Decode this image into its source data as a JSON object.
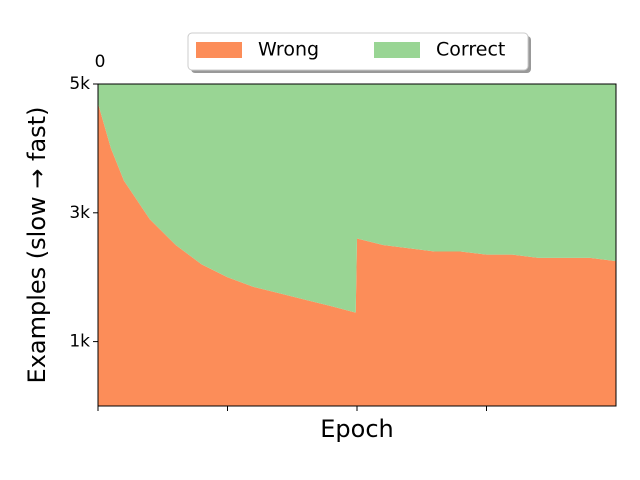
{
  "chart_data": {
    "type": "stacked_area",
    "corner_label": "0",
    "xlabel": "Epoch",
    "ylabel": "Examples (slow → fast)",
    "x": [
      0,
      1,
      2,
      4,
      6,
      8,
      10,
      12,
      14,
      16,
      18,
      19.9,
      20,
      22,
      24,
      26,
      28,
      30,
      32,
      34,
      36,
      38,
      40
    ],
    "series": [
      {
        "name": "Wrong",
        "color": "#fc8d59",
        "values": [
          4700,
          4000,
          3500,
          2900,
          2500,
          2200,
          2000,
          1850,
          1750,
          1650,
          1550,
          1450,
          2600,
          2500,
          2450,
          2400,
          2400,
          2350,
          2350,
          2300,
          2300,
          2300,
          2250
        ]
      },
      {
        "name": "Correct",
        "color": "#99d594",
        "values": [
          300,
          1000,
          1500,
          2100,
          2500,
          2800,
          3000,
          3150,
          3250,
          3350,
          3450,
          3550,
          2400,
          2500,
          2550,
          2600,
          2600,
          2650,
          2650,
          2700,
          2700,
          2700,
          2750
        ]
      }
    ],
    "xlim": [
      0,
      40
    ],
    "xticks": [
      0,
      10,
      20,
      30
    ],
    "ylim": [
      0,
      5000
    ],
    "yticks": [
      {
        "value": 1000,
        "label": "1k"
      },
      {
        "value": 3000,
        "label": "3k"
      },
      {
        "value": 5000,
        "label": "5k"
      }
    ],
    "legend": "top"
  }
}
